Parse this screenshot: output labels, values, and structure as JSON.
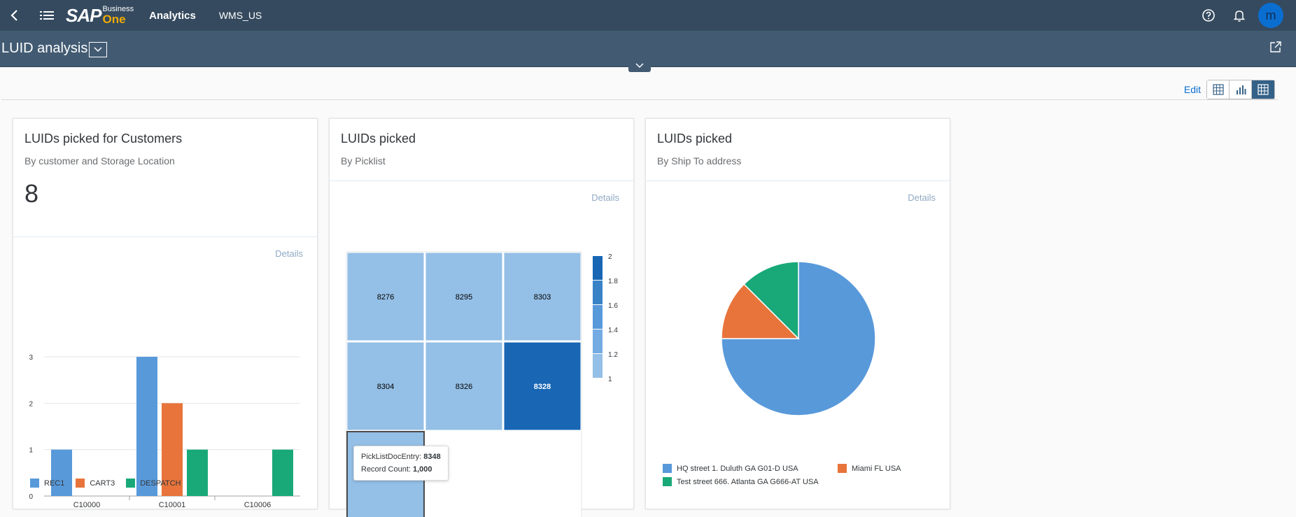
{
  "shell": {
    "logo_sap": "SAP",
    "logo_business": "Business",
    "logo_one": "One",
    "title": "Analytics",
    "database": "WMS_US",
    "avatar_initial": "m"
  },
  "page": {
    "title": "LUID analysis"
  },
  "toolbar": {
    "edit_label": "Edit"
  },
  "cards": [
    {
      "title": "LUIDs picked for Customers",
      "subtitle": "By customer and Storage Location",
      "kpi": "8",
      "details": "Details"
    },
    {
      "title": "LUIDs picked",
      "subtitle": "By Picklist",
      "details": "Details"
    },
    {
      "title": "LUIDs picked",
      "subtitle": "By Ship To address",
      "details": "Details"
    }
  ],
  "tooltip": {
    "label1": "PickListDocEntry:",
    "value1": "8348",
    "label2": "Record Count:",
    "value2": "1,000"
  },
  "chart_data": [
    {
      "type": "bar",
      "categories": [
        "C10000",
        "C10001",
        "C10006"
      ],
      "series": [
        {
          "name": "REC1",
          "values": [
            1,
            3,
            0
          ],
          "color": "#5899da"
        },
        {
          "name": "CART3",
          "values": [
            0,
            2,
            0
          ],
          "color": "#e8743b"
        },
        {
          "name": "DESPATCH",
          "values": [
            0,
            1,
            1
          ],
          "color": "#19a979"
        }
      ],
      "yticks": [
        "0",
        "1",
        "2",
        "3"
      ],
      "ylim": [
        0,
        3
      ],
      "grid": true,
      "legend": "bottom"
    },
    {
      "type": "heatmap",
      "cells": [
        {
          "label": "8276",
          "value": 1
        },
        {
          "label": "8295",
          "value": 1
        },
        {
          "label": "8303",
          "value": 1
        },
        {
          "label": "8304",
          "value": 1
        },
        {
          "label": "8326",
          "value": 1
        },
        {
          "label": "8328",
          "value": 2
        },
        {
          "label": "8348",
          "value": 1
        }
      ],
      "scale_ticks": [
        "2",
        "1.8",
        "1.6",
        "1.4",
        "1.2",
        "1"
      ],
      "scale_colors": [
        "#1866b4",
        "#3a82c6",
        "#5899da",
        "#74abe2",
        "#94bfe6"
      ],
      "legend": "right"
    },
    {
      "type": "pie",
      "slices": [
        {
          "name": "HQ street 1. Duluth GA G01-D USA",
          "value": 6,
          "color": "#5899da"
        },
        {
          "name": "Miami FL USA",
          "value": 1,
          "color": "#e8743b"
        },
        {
          "name": "Test street 666. Atlanta GA G666-AT USA",
          "value": 1,
          "color": "#19a979"
        }
      ],
      "legend": "bottom"
    }
  ]
}
